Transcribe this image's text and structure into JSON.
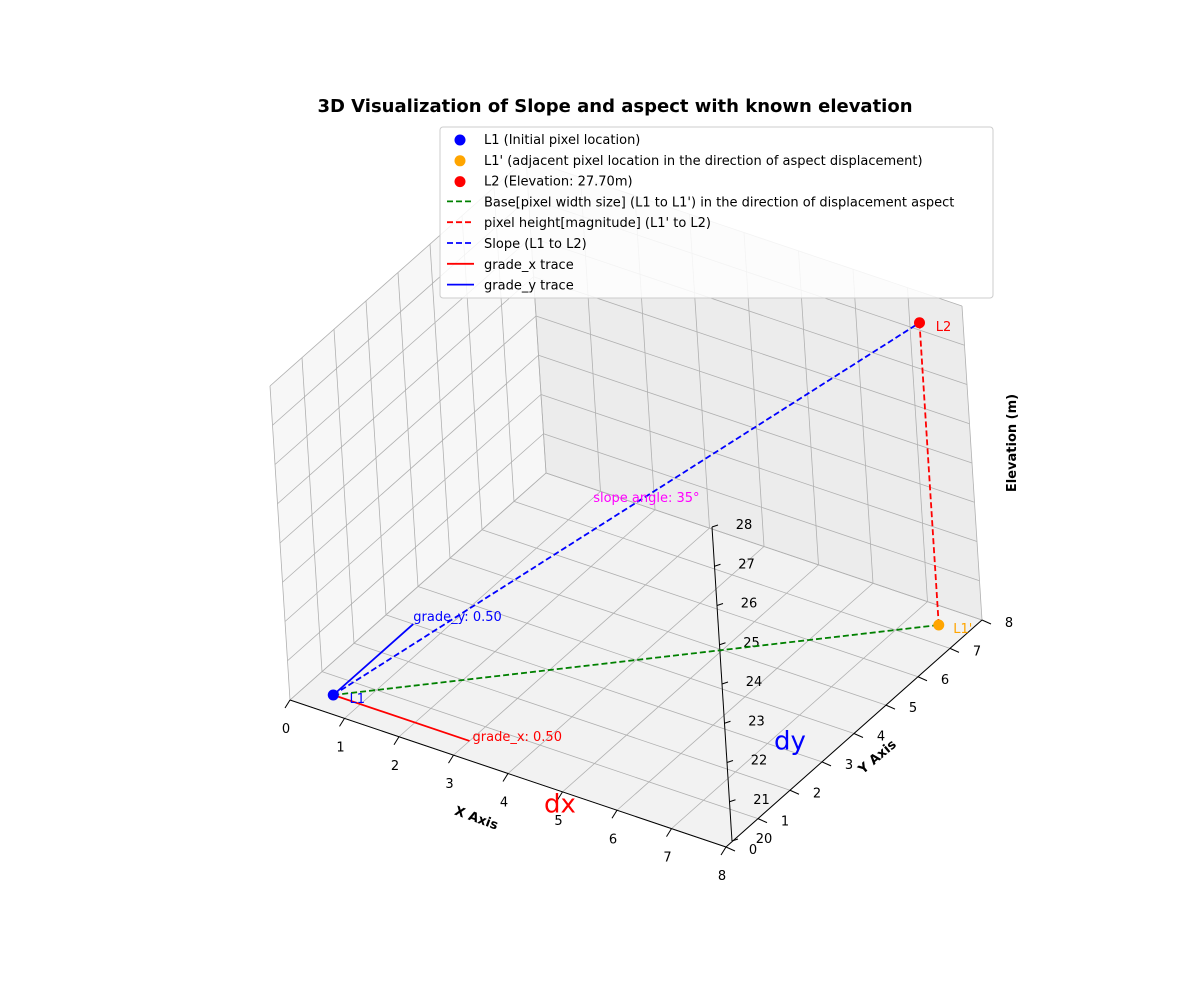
{
  "chart_data": {
    "type": "scatter",
    "title": "3D Visualization of Slope and aspect with known elevation",
    "xlabel": "X Axis",
    "ylabel": "Y Axis",
    "zlabel": "Elevation (m)",
    "xlim": [
      0,
      8
    ],
    "ylim": [
      0,
      8
    ],
    "zlim": [
      20,
      28
    ],
    "x_ticks": [
      "0",
      "1",
      "2",
      "3",
      "4",
      "5",
      "6",
      "7",
      "8"
    ],
    "y_ticks": [
      "0",
      "1",
      "2",
      "3",
      "4",
      "5",
      "6",
      "7",
      "8"
    ],
    "z_ticks": [
      "20",
      "21",
      "22",
      "23",
      "24",
      "25",
      "26",
      "27",
      "28"
    ],
    "grid": true,
    "legend_position": "top-right",
    "points": [
      {
        "key": "l1",
        "name": "L1 (Initial pixel location)",
        "label": "L1",
        "x": 0.5,
        "y": 0.5,
        "z": 20,
        "color": "#0000ff"
      },
      {
        "key": "l1p",
        "name": "L1' (adjacent pixel location in the direction of aspect displacement)",
        "label": "L1'",
        "x": 7.5,
        "y": 7.5,
        "z": 20,
        "color": "#ffa500"
      },
      {
        "key": "l2",
        "name": "L2 (Elevation: 27.70m)",
        "label": "L2",
        "x": 7.5,
        "y": 7.5,
        "z": 27.7,
        "color": "#ff0000"
      }
    ],
    "lines": [
      {
        "key": "base",
        "name": "Base[pixel width size] (L1 to L1') in the direction of displacement aspect",
        "from": [
          0.5,
          0.5,
          20
        ],
        "to": [
          7.5,
          7.5,
          20
        ],
        "color": "#008000",
        "dashed": true
      },
      {
        "key": "height",
        "name": "pixel height[magnitude] (L1' to L2)",
        "from": [
          7.5,
          7.5,
          20
        ],
        "to": [
          7.5,
          7.5,
          27.7
        ],
        "color": "#ff0000",
        "dashed": true
      },
      {
        "key": "slope",
        "name": "Slope (L1 to L2)",
        "from": [
          0.5,
          0.5,
          20
        ],
        "to": [
          7.5,
          7.5,
          27.7
        ],
        "color": "#0000ff",
        "dashed": true
      },
      {
        "key": "gradex",
        "name": "grade_x trace",
        "from": [
          0.5,
          0.5,
          20
        ],
        "to": [
          3.0,
          0.5,
          20
        ],
        "color": "#ff0000",
        "dashed": false
      },
      {
        "key": "gradey",
        "name": "grade_y trace",
        "from": [
          0.5,
          0.5,
          20
        ],
        "to": [
          0.5,
          3.0,
          20
        ],
        "color": "#0000ff",
        "dashed": false
      }
    ],
    "annotations": [
      {
        "key": "gx",
        "text": "grade_x: 0.50",
        "x": 3.0,
        "y": 0.5,
        "z": 20,
        "color": "#ff0000",
        "size": "small"
      },
      {
        "key": "gy",
        "text": "grade_y: 0.50",
        "x": 0.5,
        "y": 3.0,
        "z": 20,
        "color": "#0000ff",
        "size": "small"
      },
      {
        "key": "angle",
        "text": "slope angle: 35°",
        "x": 4.0,
        "y": 4.0,
        "z": 23.85,
        "color": "#ff00ff",
        "size": "small"
      },
      {
        "key": "dx",
        "text": "dx",
        "x": 4.0,
        "y": 0.5,
        "z": 20,
        "color": "#ff0000",
        "size": "large"
      },
      {
        "key": "dy",
        "text": "dy",
        "x": 8.0,
        "y": 4.5,
        "z": 20,
        "color": "#0000ff",
        "size": "large"
      }
    ]
  }
}
